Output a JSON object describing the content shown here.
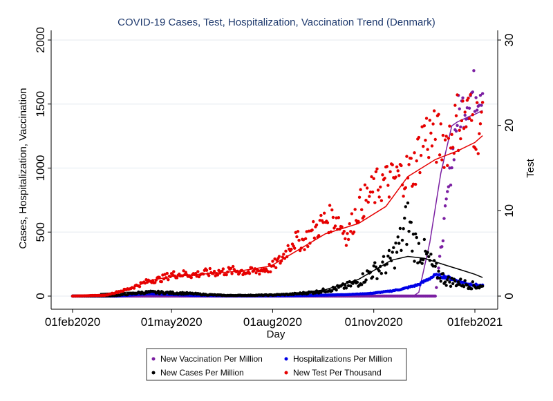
{
  "chart_data": {
    "type": "scatter",
    "title": "COVID-19 Cases, Test, Hospitalization, Vaccination Trend (Denmark)",
    "xlabel": "Day",
    "ylabel_left": "Cases, Hospitalization, Vaccination",
    "ylabel_right": "Test",
    "x_unit": "days since 01feb2020",
    "xlim": [
      0,
      373
    ],
    "ylim_left": [
      0,
      2000
    ],
    "ylim_right": [
      0,
      30
    ],
    "x_ticks": [
      {
        "day": 0,
        "label": "01feb2020"
      },
      {
        "day": 90,
        "label": "01may2020"
      },
      {
        "day": 182,
        "label": "01aug2020"
      },
      {
        "day": 274,
        "label": "01nov2020"
      },
      {
        "day": 366,
        "label": "01feb2021"
      }
    ],
    "y_ticks_left": [
      {
        "value": 0,
        "label": "0"
      },
      {
        "value": 500,
        "label": "500"
      },
      {
        "value": 1000,
        "label": "1000"
      },
      {
        "value": 1500,
        "label": "1500"
      },
      {
        "value": 2000,
        "label": "2000"
      }
    ],
    "y_ticks_right": [
      {
        "value": 0,
        "label": "0"
      },
      {
        "value": 10,
        "label": "10"
      },
      {
        "value": 20,
        "label": "20"
      },
      {
        "value": 30,
        "label": "30"
      }
    ],
    "grid": true,
    "legend_position": "bottom",
    "legend": [
      {
        "label": "New Vaccination Per Million",
        "color": "#7b1fa2"
      },
      {
        "label": "Hospitalizations Per Million",
        "color": "#0000e6"
      },
      {
        "label": "New Cases Per Million",
        "color": "#000000"
      },
      {
        "label": "New Test Per Thousand",
        "color": "#e60000"
      }
    ],
    "series": [
      {
        "name": "New Test Per Thousand",
        "axis": "right",
        "color": "#e60000",
        "anchors": [
          [
            0,
            0
          ],
          [
            30,
            0.1
          ],
          [
            50,
            0.8
          ],
          [
            60,
            1.3
          ],
          [
            70,
            1.8
          ],
          [
            80,
            2
          ],
          [
            90,
            2.5
          ],
          [
            100,
            2.6
          ],
          [
            110,
            2.5
          ],
          [
            120,
            2.7
          ],
          [
            130,
            2.8
          ],
          [
            140,
            2.9
          ],
          [
            150,
            3.0
          ],
          [
            160,
            2.8
          ],
          [
            170,
            3.0
          ],
          [
            180,
            3.3
          ],
          [
            190,
            4.3
          ],
          [
            200,
            6.5
          ],
          [
            210,
            6.4
          ],
          [
            220,
            7.7
          ],
          [
            230,
            8.9
          ],
          [
            240,
            9.2
          ],
          [
            250,
            7.0
          ],
          [
            260,
            10.4
          ],
          [
            270,
            11.7
          ],
          [
            280,
            13.2
          ],
          [
            290,
            13.5
          ],
          [
            300,
            14.2
          ],
          [
            310,
            14.8
          ],
          [
            320,
            19.0
          ],
          [
            330,
            18.5
          ],
          [
            340,
            18.0
          ],
          [
            350,
            20.5
          ],
          [
            360,
            21.0
          ],
          [
            370,
            20.0
          ]
        ],
        "trend": [
          [
            0,
            0
          ],
          [
            30,
            0.1
          ],
          [
            50,
            0.7
          ],
          [
            70,
            1.8
          ],
          [
            90,
            2.3
          ],
          [
            120,
            2.6
          ],
          [
            150,
            2.9
          ],
          [
            180,
            3.5
          ],
          [
            200,
            5.0
          ],
          [
            230,
            7.3
          ],
          [
            260,
            8.5
          ],
          [
            285,
            10.5
          ],
          [
            305,
            14.0
          ],
          [
            330,
            16.0
          ],
          [
            350,
            17.0
          ],
          [
            366,
            18.0
          ],
          [
            373,
            18.8
          ]
        ]
      },
      {
        "name": "New Cases Per Million",
        "axis": "left",
        "color": "#000000",
        "anchors": [
          [
            0,
            0
          ],
          [
            35,
            2
          ],
          [
            45,
            10
          ],
          [
            60,
            25
          ],
          [
            70,
            30
          ],
          [
            80,
            28
          ],
          [
            90,
            25
          ],
          [
            100,
            22
          ],
          [
            110,
            18
          ],
          [
            120,
            12
          ],
          [
            140,
            5
          ],
          [
            160,
            6
          ],
          [
            180,
            8
          ],
          [
            200,
            15
          ],
          [
            220,
            30
          ],
          [
            240,
            60
          ],
          [
            250,
            80
          ],
          [
            260,
            110
          ],
          [
            270,
            180
          ],
          [
            280,
            220
          ],
          [
            290,
            280
          ],
          [
            300,
            450
          ],
          [
            305,
            600
          ],
          [
            310,
            420
          ],
          [
            320,
            330
          ],
          [
            330,
            200
          ],
          [
            340,
            120
          ],
          [
            355,
            100
          ],
          [
            366,
            80
          ],
          [
            373,
            70
          ]
        ],
        "trend": [
          [
            25,
            20
          ],
          [
            50,
            30
          ],
          [
            80,
            28
          ],
          [
            110,
            18
          ],
          [
            140,
            8
          ],
          [
            170,
            8
          ],
          [
            200,
            18
          ],
          [
            230,
            50
          ],
          [
            260,
            130
          ],
          [
            290,
            280
          ],
          [
            305,
            310
          ],
          [
            320,
            295
          ],
          [
            340,
            240
          ],
          [
            355,
            200
          ],
          [
            366,
            170
          ],
          [
            373,
            145
          ]
        ]
      },
      {
        "name": "Hospitalizations Per Million",
        "axis": "left",
        "color": "#0000e6",
        "anchors": [
          [
            0,
            0
          ],
          [
            40,
            0
          ],
          [
            55,
            10
          ],
          [
            70,
            18
          ],
          [
            90,
            12
          ],
          [
            110,
            6
          ],
          [
            140,
            2
          ],
          [
            170,
            2
          ],
          [
            200,
            3
          ],
          [
            230,
            8
          ],
          [
            250,
            12
          ],
          [
            270,
            20
          ],
          [
            290,
            40
          ],
          [
            300,
            55
          ],
          [
            315,
            90
          ],
          [
            325,
            140
          ],
          [
            330,
            160
          ],
          [
            340,
            150
          ],
          [
            350,
            120
          ],
          [
            360,
            95
          ],
          [
            373,
            80
          ]
        ]
      },
      {
        "name": "New Vaccination Per Million",
        "axis": "left",
        "color": "#7b1fa2",
        "anchors": [
          [
            0,
            0
          ],
          [
            300,
            0
          ],
          [
            320,
            0
          ],
          [
            330,
            0
          ],
          [
            340,
            700
          ],
          [
            350,
            1400
          ],
          [
            360,
            1550
          ],
          [
            366,
            1600
          ],
          [
            373,
            1650
          ]
        ],
        "trend": [
          [
            0,
            0
          ],
          [
            310,
            0
          ],
          [
            315,
            30
          ],
          [
            325,
            420
          ],
          [
            335,
            960
          ],
          [
            345,
            1330
          ],
          [
            350,
            1360
          ],
          [
            360,
            1400
          ],
          [
            366,
            1420
          ],
          [
            373,
            1450
          ]
        ]
      }
    ]
  }
}
